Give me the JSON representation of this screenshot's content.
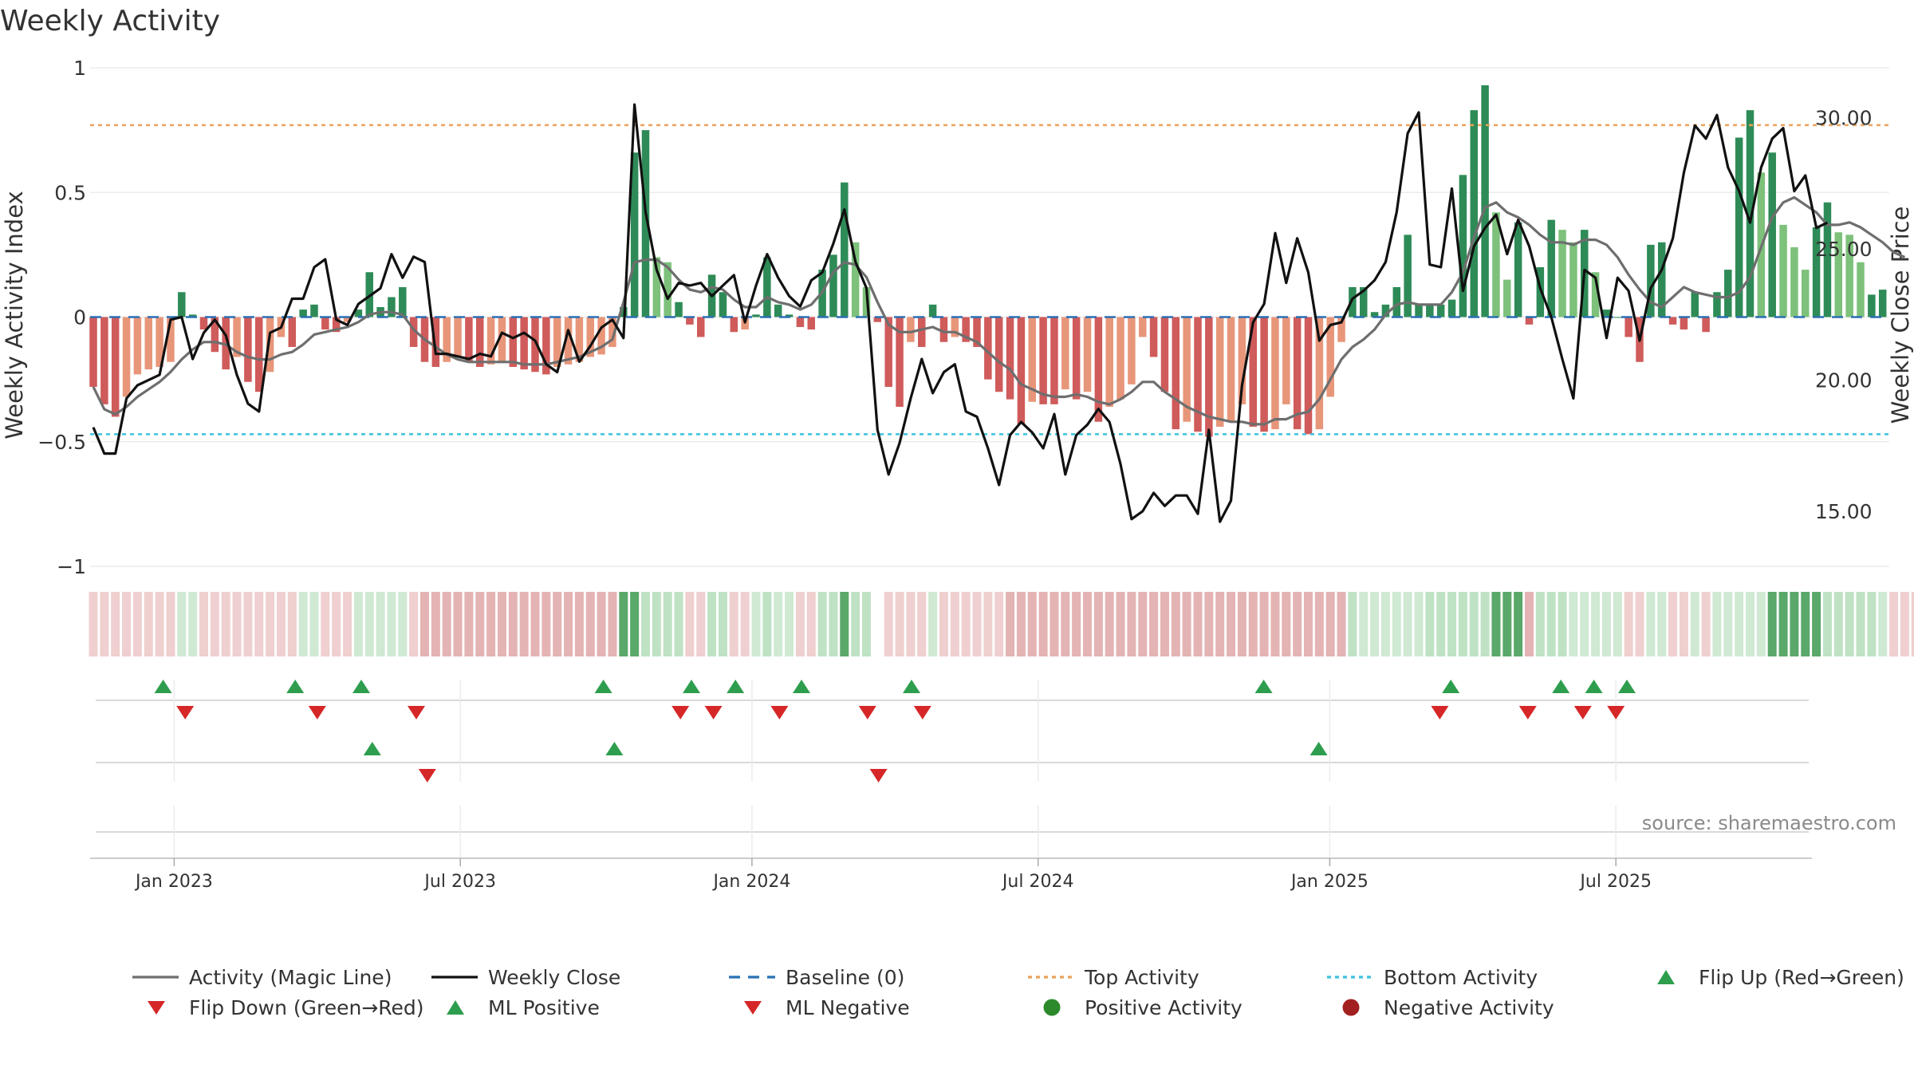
{
  "chart_data": {
    "type": "bar",
    "title": "Weekly Activity",
    "ylabel_left": "Weekly Activity Index",
    "ylabel_right": "Weekly Close Price",
    "ylim_left": [
      -1,
      1
    ],
    "ylim_right": [
      12.9,
      31.9
    ],
    "left_ticks": [
      {
        "value": 1,
        "label": "1"
      },
      {
        "value": 0.5,
        "label": "0.5"
      },
      {
        "value": 0,
        "label": "0"
      },
      {
        "value": -0.5,
        "label": "−0.5"
      },
      {
        "value": -1,
        "label": "−1"
      }
    ],
    "right_ticks": [
      {
        "value": 30,
        "label": "30.00"
      },
      {
        "value": 25,
        "label": "25.00"
      },
      {
        "value": 20,
        "label": "20.00"
      },
      {
        "value": 15,
        "label": "15.00"
      }
    ],
    "x_ticks": [
      {
        "week": 8,
        "label": "Jan 2023"
      },
      {
        "week": 34,
        "label": "Jul 2023"
      },
      {
        "week": 60.5,
        "label": "Jan 2024"
      },
      {
        "week": 86.5,
        "label": "Jul 2024"
      },
      {
        "week": 113,
        "label": "Jan 2025"
      },
      {
        "week": 139,
        "label": "Jul 2025"
      }
    ],
    "top_activity": 0.77,
    "bottom_activity": -0.47,
    "baseline": 0,
    "activity_values": [
      -0.28,
      -0.35,
      -0.4,
      -0.32,
      -0.23,
      -0.21,
      -0.2,
      -0.18,
      0.1,
      0.01,
      -0.05,
      -0.14,
      -0.21,
      -0.16,
      -0.26,
      -0.3,
      -0.22,
      -0.08,
      -0.12,
      0.03,
      0.05,
      -0.05,
      -0.06,
      -0.02,
      0.03,
      0.18,
      0.04,
      0.08,
      0.12,
      -0.12,
      -0.18,
      -0.2,
      -0.18,
      -0.16,
      -0.18,
      -0.2,
      -0.19,
      -0.18,
      -0.2,
      -0.21,
      -0.22,
      -0.23,
      -0.2,
      -0.19,
      -0.18,
      -0.16,
      -0.15,
      -0.12,
      0.04,
      0.66,
      0.75,
      0.24,
      0.22,
      0.06,
      -0.03,
      -0.08,
      0.17,
      0.1,
      -0.06,
      -0.05,
      0.01,
      0.24,
      0.05,
      0.01,
      -0.04,
      -0.05,
      0.19,
      0.25,
      0.54,
      0.3,
      0.12,
      -0.02,
      -0.28,
      -0.36,
      -0.1,
      -0.12,
      0.05,
      -0.1,
      -0.08,
      -0.1,
      -0.12,
      -0.25,
      -0.3,
      -0.33,
      -0.43,
      -0.34,
      -0.35,
      -0.35,
      -0.29,
      -0.33,
      -0.3,
      -0.42,
      -0.36,
      -0.33,
      -0.27,
      -0.08,
      -0.16,
      -0.3,
      -0.45,
      -0.42,
      -0.46,
      -0.48,
      -0.44,
      -0.42,
      -0.35,
      -0.44,
      -0.46,
      -0.45,
      -0.35,
      -0.45,
      -0.47,
      -0.45,
      -0.32,
      -0.1,
      0.12,
      0.12,
      0.02,
      0.05,
      0.12,
      0.33,
      0.05,
      0.05,
      0.05,
      0.07,
      0.57,
      0.83,
      0.93,
      0.42,
      0.15,
      0.38,
      -0.03,
      0.2,
      0.39,
      0.35,
      0.3,
      0.35,
      0.18,
      0.03,
      0,
      -0.08,
      -0.18,
      0.29,
      0.3,
      -0.03,
      -0.05,
      0.1,
      -0.06,
      0.1,
      0.19,
      0.72,
      0.83,
      0.58,
      0.66,
      0.37,
      0.28,
      0.19,
      0.36,
      0.46,
      0.34,
      0.33,
      0.22,
      0.09,
      0.11
    ],
    "magic_line": [
      -0.28,
      -0.37,
      -0.39,
      -0.36,
      -0.32,
      -0.29,
      -0.26,
      -0.22,
      -0.17,
      -0.13,
      -0.1,
      -0.1,
      -0.11,
      -0.14,
      -0.16,
      -0.17,
      -0.17,
      -0.15,
      -0.14,
      -0.11,
      -0.07,
      -0.06,
      -0.05,
      -0.04,
      -0.02,
      0.01,
      0.02,
      0.02,
      0.01,
      -0.05,
      -0.09,
      -0.12,
      -0.15,
      -0.17,
      -0.18,
      -0.18,
      -0.18,
      -0.18,
      -0.18,
      -0.19,
      -0.19,
      -0.19,
      -0.18,
      -0.17,
      -0.16,
      -0.14,
      -0.12,
      -0.09,
      0.06,
      0.22,
      0.23,
      0.23,
      0.2,
      0.15,
      0.11,
      0.1,
      0.12,
      0.11,
      0.07,
      0.04,
      0.04,
      0.08,
      0.06,
      0.05,
      0.03,
      0.05,
      0.1,
      0.18,
      0.22,
      0.21,
      0.16,
      0.06,
      -0.03,
      -0.06,
      -0.06,
      -0.05,
      -0.04,
      -0.06,
      -0.06,
      -0.08,
      -0.1,
      -0.14,
      -0.18,
      -0.21,
      -0.27,
      -0.29,
      -0.31,
      -0.32,
      -0.32,
      -0.31,
      -0.32,
      -0.34,
      -0.35,
      -0.33,
      -0.3,
      -0.26,
      -0.26,
      -0.3,
      -0.33,
      -0.36,
      -0.38,
      -0.4,
      -0.41,
      -0.42,
      -0.42,
      -0.43,
      -0.43,
      -0.41,
      -0.41,
      -0.39,
      -0.38,
      -0.33,
      -0.25,
      -0.17,
      -0.12,
      -0.09,
      -0.05,
      0.01,
      0.05,
      0.06,
      0.05,
      0.05,
      0.05,
      0.1,
      0.18,
      0.32,
      0.44,
      0.46,
      0.42,
      0.4,
      0.37,
      0.33,
      0.3,
      0.3,
      0.29,
      0.31,
      0.31,
      0.29,
      0.24,
      0.17,
      0.11,
      0.06,
      0.04,
      0.08,
      0.12,
      0.1,
      0.09,
      0.08,
      0.08,
      0.1,
      0.16,
      0.28,
      0.4,
      0.46,
      0.48,
      0.45,
      0.42,
      0.37,
      0.37,
      0.38,
      0.36,
      0.33,
      0.3,
      0.26,
      0.24
    ],
    "weekly_close": [
      18.2,
      17.2,
      17.2,
      19.3,
      19.8,
      20,
      20.2,
      22.3,
      22.4,
      20.8,
      21.8,
      22.3,
      21.7,
      20.2,
      19.1,
      18.8,
      21.8,
      22,
      23.1,
      23.1,
      24.3,
      24.6,
      22.3,
      22.1,
      22.9,
      23.2,
      23.5,
      24.8,
      23.9,
      24.7,
      24.5,
      21,
      21,
      20.9,
      20.8,
      21,
      20.9,
      21.8,
      21.6,
      21.8,
      21.5,
      20.6,
      20.3,
      21.9,
      20.7,
      21.3,
      22,
      22.3,
      21.6,
      30.5,
      26.4,
      24.2,
      23.1,
      23.7,
      23.6,
      23.7,
      23.2,
      23.6,
      24,
      22.2,
      23.6,
      24.8,
      23.9,
      23.2,
      22.8,
      23.8,
      24.1,
      25.2,
      26.5,
      24.5,
      23.5,
      18.1,
      16.4,
      17.6,
      19.3,
      20.8,
      19.5,
      20.3,
      20.6,
      18.8,
      18.6,
      17.4,
      16,
      17.9,
      18.4,
      18,
      17.4,
      18.7,
      16.4,
      17.9,
      18.3,
      18.9,
      18.4,
      16.8,
      14.7,
      15,
      15.7,
      15.2,
      15.6,
      15.6,
      14.9,
      18.1,
      14.6,
      15.4,
      19.8,
      22.2,
      22.9,
      25.6,
      23.7,
      25.4,
      24.1,
      21.5,
      22.1,
      22.2,
      23.1,
      23.4,
      23.8,
      24.5,
      26.4,
      29.4,
      30.2,
      24.4,
      24.3,
      27.3,
      23.4,
      25.1,
      25.8,
      26.3,
      24.8,
      26.1,
      25.1,
      23.5,
      22.4,
      20.8,
      19.3,
      24.2,
      23.9,
      21.6,
      23.9,
      23.4,
      21.5,
      23.5,
      24.2,
      25.4,
      27.9,
      29.7,
      29.2,
      30.1,
      28.1,
      27.2,
      26,
      28.1,
      29.2,
      29.6,
      27.2,
      27.8,
      25.8,
      26
    ],
    "status_strip_level": [
      1,
      1,
      1,
      1,
      1,
      1,
      1,
      1,
      1,
      1,
      1,
      1,
      1,
      1,
      1,
      1,
      1,
      1,
      1,
      1,
      1,
      1,
      1,
      1,
      1,
      1,
      1,
      1,
      1,
      1,
      2,
      2,
      2,
      2,
      2,
      2,
      2,
      2,
      2,
      2,
      2,
      2,
      2,
      2,
      2,
      2,
      2,
      2,
      3,
      3,
      2,
      2,
      2,
      2,
      1,
      1,
      2,
      2,
      1,
      1,
      1,
      2,
      1,
      1,
      1,
      1,
      2,
      2,
      3,
      2,
      2,
      0,
      1,
      1,
      1,
      1,
      1,
      1,
      1,
      1,
      1,
      1,
      1,
      2,
      2,
      2,
      2,
      2,
      2,
      2,
      2,
      2,
      2,
      2,
      2,
      2,
      2,
      2,
      2,
      2,
      2,
      2,
      2,
      2,
      2,
      2,
      2,
      2,
      2,
      2,
      2,
      2,
      2,
      2,
      2,
      1,
      1,
      1,
      1,
      1,
      1,
      2,
      2,
      2,
      2,
      2,
      2,
      3,
      3,
      3,
      2,
      2,
      2,
      2,
      1,
      1,
      1,
      1,
      1,
      1,
      1,
      1,
      1,
      1,
      1,
      1,
      1,
      1,
      1,
      1,
      1,
      1,
      3,
      3,
      3,
      3,
      3,
      2,
      2,
      2,
      2,
      2,
      1,
      1,
      1,
      1
    ],
    "markers": {
      "flip_up": [
        7,
        19,
        25,
        47,
        55,
        59,
        65,
        75,
        107,
        124,
        134,
        137,
        140
      ],
      "flip_down": [
        9,
        21,
        30,
        54,
        57,
        63,
        71,
        76,
        123,
        131,
        136,
        139
      ],
      "ml_positive": [
        26,
        48,
        112
      ],
      "ml_negative": [
        31,
        72
      ]
    },
    "lane_separators": [
      3
    ],
    "source": "source: sharemaestro.com",
    "legend": [
      {
        "label": "Activity (Magic Line)",
        "kind": "line",
        "color": "#6e6e6e",
        "dash": ""
      },
      {
        "label": "Weekly Close",
        "kind": "line",
        "color": "#111111",
        "dash": ""
      },
      {
        "label": "Baseline (0)",
        "kind": "line",
        "color": "#2a6fb5",
        "dash": "14,10"
      },
      {
        "label": "Top Activity",
        "kind": "line",
        "color": "#e8a35b",
        "dash": "5,5"
      },
      {
        "label": "Bottom Activity",
        "kind": "line",
        "color": "#3cc3dc",
        "dash": "5,5"
      },
      {
        "label": "Flip Up (Red→Green)",
        "kind": "tri-up",
        "color": "#2e9e4e"
      },
      {
        "label": "Flip Down (Green→Red)",
        "kind": "tri-down",
        "color": "#d62728"
      },
      {
        "label": "ML Positive",
        "kind": "tri-up",
        "color": "#2e9e4e"
      },
      {
        "label": "ML Negative",
        "kind": "tri-down",
        "color": "#d62728"
      },
      {
        "label": "Positive Activity",
        "kind": "dot",
        "color": "#2c8a2c"
      },
      {
        "label": "Negative Activity",
        "kind": "dot",
        "color": "#a32020"
      }
    ],
    "colors": {
      "pos_strong": "#2e8b57",
      "pos_light": "#7dc17b",
      "neg_strong": "#cf5b5b",
      "neg_light": "#e8967a",
      "grid": "#ececec",
      "axis": "#cccccc"
    }
  }
}
